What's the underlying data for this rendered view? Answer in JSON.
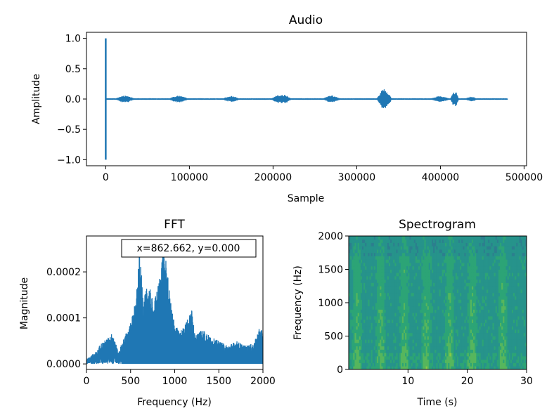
{
  "chart_data": [
    {
      "id": "audio",
      "type": "line",
      "title": "Audio",
      "xlabel": "Sample",
      "ylabel": "Amplitude",
      "xlim": [
        -23000,
        503000
      ],
      "ylim": [
        -1.1,
        1.1
      ],
      "x_ticks": [
        {
          "value": 0,
          "label": "0"
        },
        {
          "value": 100000,
          "label": "100000"
        },
        {
          "value": 200000,
          "label": "200000"
        },
        {
          "value": 300000,
          "label": "300000"
        },
        {
          "value": 400000,
          "label": "400000"
        },
        {
          "value": 500000,
          "label": "500000"
        }
      ],
      "y_ticks": [
        {
          "value": 1.0,
          "label": "1.0"
        },
        {
          "value": 0.5,
          "label": "0.5"
        },
        {
          "value": 0.0,
          "label": "0.0"
        },
        {
          "value": -0.5,
          "label": "−0.5"
        },
        {
          "value": -1.0,
          "label": "−1.0"
        }
      ],
      "line_color": "#1f77b4",
      "signal": {
        "total_samples": 480000,
        "spike": {
          "x": 0,
          "max": 1.0,
          "min": -1.0
        },
        "bursts": [
          {
            "center": 23000,
            "half_width": 12000,
            "amp": 0.06
          },
          {
            "center": 87000,
            "half_width": 12000,
            "amp": 0.06
          },
          {
            "center": 150000,
            "half_width": 11000,
            "amp": 0.05
          },
          {
            "center": 210000,
            "half_width": 13000,
            "amp": 0.08
          },
          {
            "center": 270000,
            "half_width": 11000,
            "amp": 0.06
          },
          {
            "center": 333000,
            "half_width": 9000,
            "amp": 0.18
          },
          {
            "center": 400000,
            "half_width": 12000,
            "amp": 0.05
          },
          {
            "center": 417000,
            "half_width": 5000,
            "amp": 0.14
          },
          {
            "center": 437000,
            "half_width": 8000,
            "amp": 0.04
          }
        ],
        "noise_amp": 0.012
      }
    },
    {
      "id": "fft",
      "type": "line",
      "title": "FFT",
      "xlabel": "Frequency (Hz)",
      "ylabel": "Magnitude",
      "xlim": [
        0,
        2000
      ],
      "ylim": [
        -1.2e-05,
        0.000278
      ],
      "x_ticks": [
        {
          "value": 0,
          "label": "0"
        },
        {
          "value": 500,
          "label": "500"
        },
        {
          "value": 1000,
          "label": "1000"
        },
        {
          "value": 1500,
          "label": "1500"
        },
        {
          "value": 2000,
          "label": "2000"
        }
      ],
      "y_ticks": [
        {
          "value": 0.0002,
          "label": "0.0002"
        },
        {
          "value": 0.0001,
          "label": "0.0001"
        },
        {
          "value": 0.0,
          "label": "0.0000"
        }
      ],
      "line_color": "#1f77b4",
      "envelope": [
        [
          0,
          1e-05
        ],
        [
          60,
          2e-05
        ],
        [
          120,
          2.8e-05
        ],
        [
          160,
          4.5e-05
        ],
        [
          200,
          5e-05
        ],
        [
          260,
          6e-05
        ],
        [
          300,
          7e-05
        ],
        [
          360,
          2.5e-05
        ],
        [
          420,
          5.5e-05
        ],
        [
          500,
          9e-05
        ],
        [
          560,
          0.00014
        ],
        [
          600,
          0.00024
        ],
        [
          650,
          0.00014
        ],
        [
          700,
          0.00018
        ],
        [
          760,
          0.00013
        ],
        [
          820,
          0.00018
        ],
        [
          870,
          0.00026
        ],
        [
          900,
          0.00023
        ],
        [
          950,
          0.00014
        ],
        [
          1000,
          9e-05
        ],
        [
          1050,
          7e-05
        ],
        [
          1100,
          8e-05
        ],
        [
          1200,
          0.00012
        ],
        [
          1230,
          6e-05
        ],
        [
          1300,
          8e-05
        ],
        [
          1400,
          6e-05
        ],
        [
          1500,
          5e-05
        ],
        [
          1600,
          4e-05
        ],
        [
          1700,
          5e-05
        ],
        [
          1800,
          4e-05
        ],
        [
          1900,
          4.5e-05
        ],
        [
          1960,
          8e-05
        ],
        [
          2000,
          7e-05
        ]
      ],
      "cursor_readout": "x=862.662, y=0.000"
    },
    {
      "id": "spectrogram",
      "type": "heatmap",
      "title": "Spectrogram",
      "xlabel": "Time (s)",
      "ylabel": "Frequency (Hz)",
      "xlim": [
        0,
        30
      ],
      "ylim": [
        0,
        2000
      ],
      "x_ticks": [
        {
          "value": 10,
          "label": "10"
        },
        {
          "value": 20,
          "label": "20"
        },
        {
          "value": 30,
          "label": "30"
        }
      ],
      "y_ticks": [
        {
          "value": 2000,
          "label": "2000"
        },
        {
          "value": 1500,
          "label": "1500"
        },
        {
          "value": 1000,
          "label": "1000"
        },
        {
          "value": 500,
          "label": "500"
        },
        {
          "value": 0,
          "label": "0"
        }
      ],
      "colormap": [
        "#2c7f8e",
        "#26938b",
        "#2ca476",
        "#56b65d",
        "#8dcb42"
      ],
      "speech_segments_s": [
        1.4,
        5.4,
        9.4,
        13.1,
        17.0,
        20.8,
        26.0
      ]
    }
  ]
}
